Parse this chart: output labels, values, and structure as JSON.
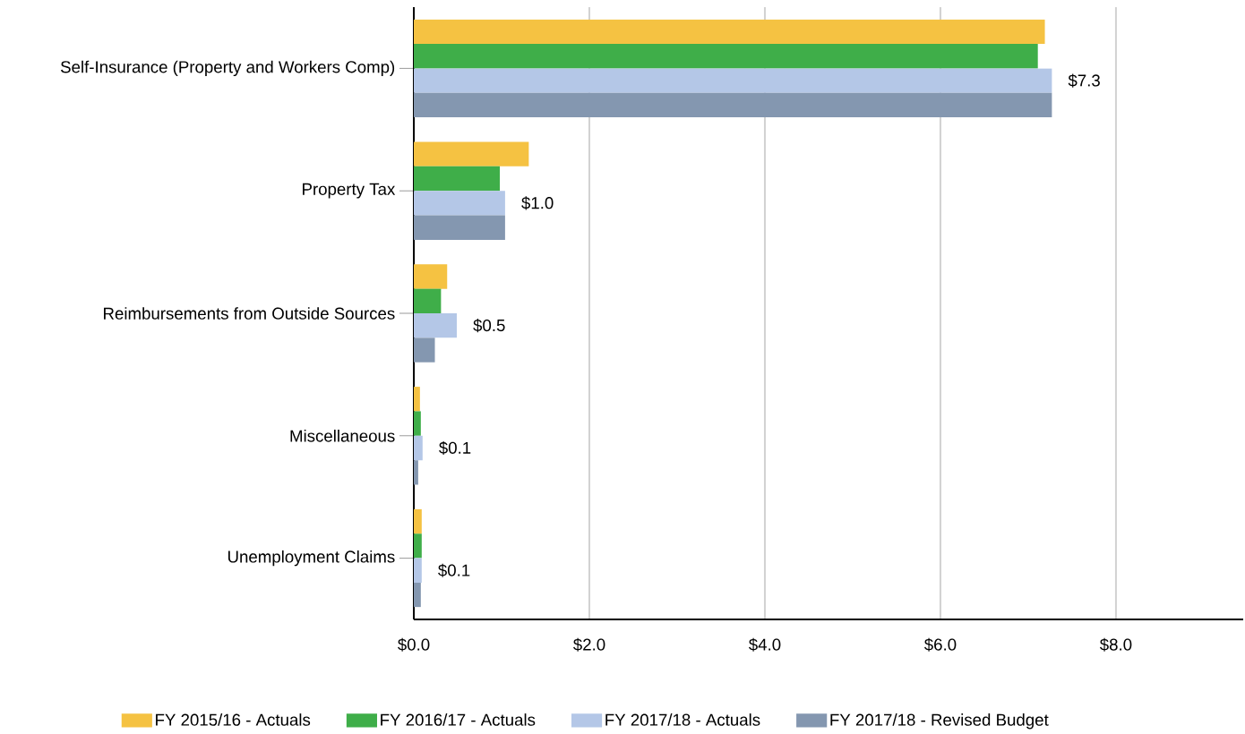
{
  "chart_data": {
    "type": "bar",
    "orientation": "horizontal",
    "categories": [
      "Self-Insurance (Property and Workers Comp)",
      "Property Tax",
      "Reimbursements from Outside Sources",
      "Miscellaneous",
      "Unemployment Claims"
    ],
    "series": [
      {
        "name": "FY 2015/16 - Actuals",
        "color": "#f5c242",
        "values": [
          7.19,
          1.31,
          0.38,
          0.07,
          0.09
        ]
      },
      {
        "name": "FY 2016/17 - Actuals",
        "color": "#3fae49",
        "values": [
          7.11,
          0.98,
          0.31,
          0.08,
          0.09
        ]
      },
      {
        "name": "FY 2017/18 - Actuals",
        "color": "#b4c7e7",
        "values": [
          7.27,
          1.04,
          0.49,
          0.1,
          0.09
        ],
        "value_labels": [
          "$7.3",
          "$1.0",
          "$0.5",
          "$0.1",
          "$0.1"
        ]
      },
      {
        "name": "FY 2017/18 - Revised Budget",
        "color": "#8497b0",
        "values": [
          7.27,
          1.04,
          0.24,
          0.05,
          0.08
        ]
      }
    ],
    "xlim": [
      0,
      9.45
    ],
    "xticks": [
      {
        "value": 0,
        "label": "$0.0"
      },
      {
        "value": 2,
        "label": "$2.0"
      },
      {
        "value": 4,
        "label": "$4.0"
      },
      {
        "value": 6,
        "label": "$6.0"
      },
      {
        "value": 8,
        "label": "$8.0"
      }
    ],
    "grid": "x",
    "legend": "bottom"
  }
}
